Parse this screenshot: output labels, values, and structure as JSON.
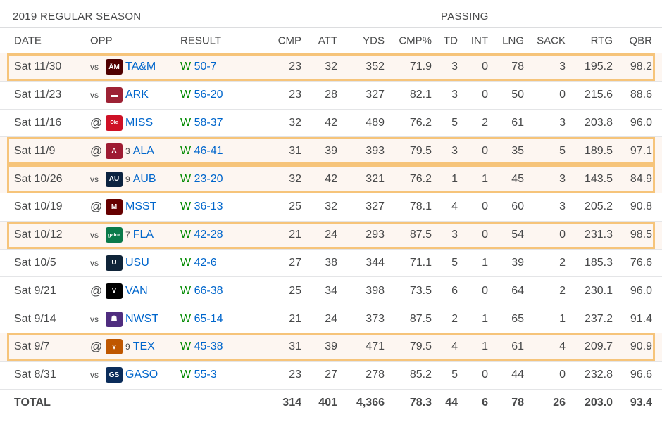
{
  "season": {
    "title": "2019 REGULAR SEASON",
    "group_label": "PASSING"
  },
  "columns": {
    "date": "DATE",
    "opp": "OPP",
    "result": "RESULT",
    "cmp": "CMP",
    "att": "ATT",
    "yds": "YDS",
    "pct": "CMP%",
    "td": "TD",
    "int": "INT",
    "lng": "LNG",
    "sack": "SACK",
    "rtg": "RTG",
    "qbr": "QBR"
  },
  "games": [
    {
      "date": "Sat 11/30",
      "site": "vs",
      "rank": "",
      "team": "TA&M",
      "logo": "tam-logo",
      "logo_color": "#500000",
      "logo_text": "ĀM",
      "outcome": "W",
      "score": "50-7",
      "cmp": "23",
      "att": "32",
      "yds": "352",
      "pct": "71.9",
      "td": "3",
      "int": "0",
      "lng": "78",
      "sack": "3",
      "rtg": "195.2",
      "qbr": "98.2",
      "highlight": true
    },
    {
      "date": "Sat 11/23",
      "site": "vs",
      "rank": "",
      "team": "ARK",
      "logo": "ark-logo",
      "logo_color": "#9d2235",
      "logo_text": "▬",
      "outcome": "W",
      "score": "56-20",
      "cmp": "23",
      "att": "28",
      "yds": "327",
      "pct": "82.1",
      "td": "3",
      "int": "0",
      "lng": "50",
      "sack": "0",
      "rtg": "215.6",
      "qbr": "88.6",
      "highlight": false
    },
    {
      "date": "Sat 11/16",
      "site": "@",
      "rank": "",
      "team": "MISS",
      "logo": "miss-logo",
      "logo_color": "#ce1126",
      "logo_text": "Ole",
      "outcome": "W",
      "score": "58-37",
      "cmp": "32",
      "att": "42",
      "yds": "489",
      "pct": "76.2",
      "td": "5",
      "int": "2",
      "lng": "61",
      "sack": "3",
      "rtg": "203.8",
      "qbr": "96.0",
      "highlight": false
    },
    {
      "date": "Sat 11/9",
      "site": "@",
      "rank": "3",
      "team": "ALA",
      "logo": "ala-logo",
      "logo_color": "#9e1b32",
      "logo_text": "A",
      "outcome": "W",
      "score": "46-41",
      "cmp": "31",
      "att": "39",
      "yds": "393",
      "pct": "79.5",
      "td": "3",
      "int": "0",
      "lng": "35",
      "sack": "5",
      "rtg": "189.5",
      "qbr": "97.1",
      "highlight": true
    },
    {
      "date": "Sat 10/26",
      "site": "vs",
      "rank": "9",
      "team": "AUB",
      "logo": "aub-logo",
      "logo_color": "#0c2340",
      "logo_text": "AU",
      "outcome": "W",
      "score": "23-20",
      "cmp": "32",
      "att": "42",
      "yds": "321",
      "pct": "76.2",
      "td": "1",
      "int": "1",
      "lng": "45",
      "sack": "3",
      "rtg": "143.5",
      "qbr": "84.9",
      "highlight": true
    },
    {
      "date": "Sat 10/19",
      "site": "@",
      "rank": "",
      "team": "MSST",
      "logo": "msst-logo",
      "logo_color": "#660000",
      "logo_text": "M",
      "outcome": "W",
      "score": "36-13",
      "cmp": "25",
      "att": "32",
      "yds": "327",
      "pct": "78.1",
      "td": "4",
      "int": "0",
      "lng": "60",
      "sack": "3",
      "rtg": "205.2",
      "qbr": "90.8",
      "highlight": false
    },
    {
      "date": "Sat 10/12",
      "site": "vs",
      "rank": "7",
      "team": "FLA",
      "logo": "fla-logo",
      "logo_color": "#0a7a4a",
      "logo_text": "gator",
      "outcome": "W",
      "score": "42-28",
      "cmp": "21",
      "att": "24",
      "yds": "293",
      "pct": "87.5",
      "td": "3",
      "int": "0",
      "lng": "54",
      "sack": "0",
      "rtg": "231.3",
      "qbr": "98.5",
      "highlight": true
    },
    {
      "date": "Sat 10/5",
      "site": "vs",
      "rank": "",
      "team": "USU",
      "logo": "usu-logo",
      "logo_color": "#0f2439",
      "logo_text": "U",
      "outcome": "W",
      "score": "42-6",
      "cmp": "27",
      "att": "38",
      "yds": "344",
      "pct": "71.1",
      "td": "5",
      "int": "1",
      "lng": "39",
      "sack": "2",
      "rtg": "185.3",
      "qbr": "76.6",
      "highlight": false
    },
    {
      "date": "Sat 9/21",
      "site": "@",
      "rank": "",
      "team": "VAN",
      "logo": "van-logo",
      "logo_color": "#000000",
      "logo_text": "V",
      "outcome": "W",
      "score": "66-38",
      "cmp": "25",
      "att": "34",
      "yds": "398",
      "pct": "73.5",
      "td": "6",
      "int": "0",
      "lng": "64",
      "sack": "2",
      "rtg": "230.1",
      "qbr": "96.0",
      "highlight": false
    },
    {
      "date": "Sat 9/14",
      "site": "vs",
      "rank": "",
      "team": "NWST",
      "logo": "nwst-logo",
      "logo_color": "#4f2d7f",
      "logo_text": "☗",
      "outcome": "W",
      "score": "65-14",
      "cmp": "21",
      "att": "24",
      "yds": "373",
      "pct": "87.5",
      "td": "2",
      "int": "1",
      "lng": "65",
      "sack": "1",
      "rtg": "237.2",
      "qbr": "91.4",
      "highlight": false
    },
    {
      "date": "Sat 9/7",
      "site": "@",
      "rank": "9",
      "team": "TEX",
      "logo": "tex-logo",
      "logo_color": "#bf5700",
      "logo_text": "⋎",
      "outcome": "W",
      "score": "45-38",
      "cmp": "31",
      "att": "39",
      "yds": "471",
      "pct": "79.5",
      "td": "4",
      "int": "1",
      "lng": "61",
      "sack": "4",
      "rtg": "209.7",
      "qbr": "90.9",
      "highlight": true
    },
    {
      "date": "Sat 8/31",
      "site": "vs",
      "rank": "",
      "team": "GASO",
      "logo": "gaso-logo",
      "logo_color": "#0b2d5b",
      "logo_text": "GS",
      "outcome": "W",
      "score": "55-3",
      "cmp": "23",
      "att": "27",
      "yds": "278",
      "pct": "85.2",
      "td": "5",
      "int": "0",
      "lng": "44",
      "sack": "0",
      "rtg": "232.8",
      "qbr": "96.6",
      "highlight": false
    }
  ],
  "total": {
    "label": "TOTAL",
    "cmp": "314",
    "att": "401",
    "yds": "4,366",
    "pct": "78.3",
    "td": "44",
    "int": "6",
    "lng": "78",
    "sack": "26",
    "rtg": "203.0",
    "qbr": "93.4"
  },
  "colors": {
    "link": "#0066cc",
    "win": "#008a00",
    "highlight_border": "#f6c47a",
    "highlight_bg": "#fdf6f1"
  }
}
